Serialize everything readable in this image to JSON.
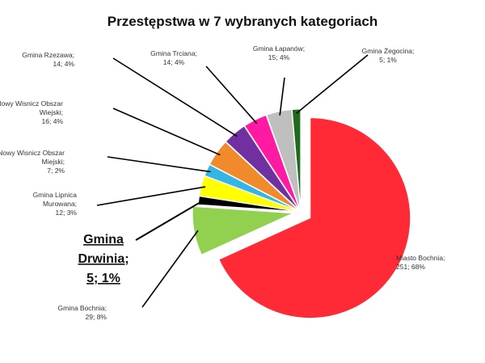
{
  "chart_data": {
    "type": "pie",
    "title": "Przestępstwa w 7 wybranych kategoriach",
    "slices": [
      {
        "name": "Miasto Bochnia",
        "value": 251,
        "label_value": "251; 68%",
        "color": "#ff2a36"
      },
      {
        "name": "Gmina Bochnia",
        "value": 29,
        "label_value": "29; 8%",
        "color": "#92d050"
      },
      {
        "name": "Gmina Drwinia;",
        "value": 5,
        "label_value": "5; 1%",
        "color": "#000000"
      },
      {
        "name": "Gmina Lipnica Murowana;",
        "value": 12,
        "label_value": "12; 3%",
        "color": "#ffff00"
      },
      {
        "name": "Nowy Wisnicz Obszar Miejski;",
        "value": 7,
        "label_value": "7; 2%",
        "color": "#33b6e6"
      },
      {
        "name": "Nowy Wisnicz Obszar Wiejski;",
        "value": 16,
        "label_value": "16; 4%",
        "color": "#f08a2a"
      },
      {
        "name": "Gmina Rzezawa;",
        "value": 14,
        "label_value": "14; 4%",
        "color": "#7030a0"
      },
      {
        "name": "Gmina Trciana;",
        "value": 14,
        "label_value": "14; 4%",
        "color": "#ff1aa3"
      },
      {
        "name": "Gmina Łapanów;",
        "value": 15,
        "label_value": "15; 4%",
        "color": "#bfbfbf"
      },
      {
        "name": "Gmina Żegocina;",
        "value": 5,
        "label_value": "5; 1%",
        "color": "#1e6b1e"
      }
    ]
  }
}
